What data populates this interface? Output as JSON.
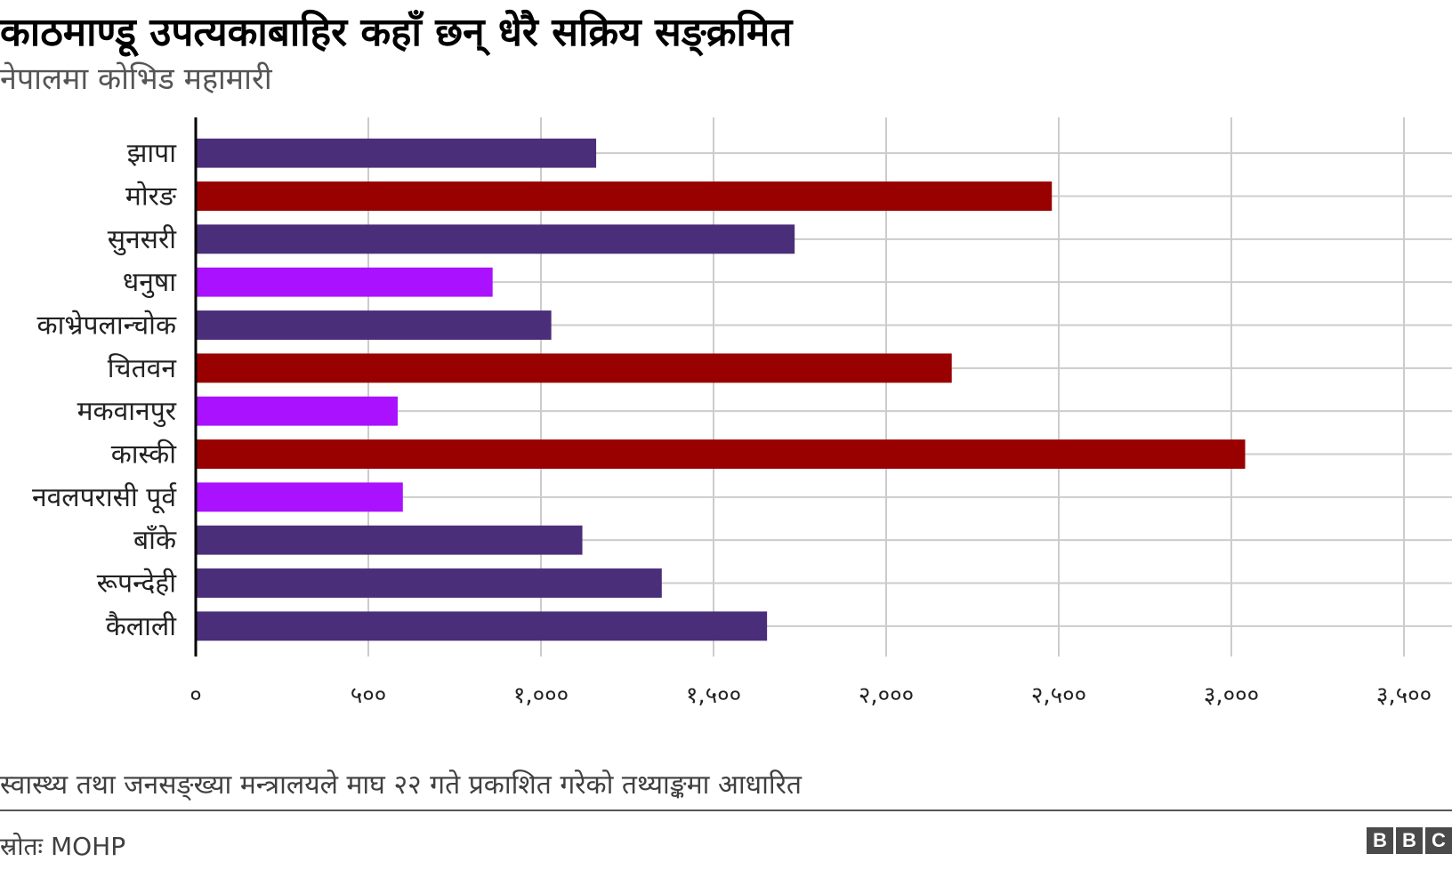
{
  "header": {
    "title": "काठमाण्डू उपत्यकाबाहिर कहाँ छन् धेरै सक्रिय सङ्क्रमित",
    "subtitle": "नेपालमा कोभिड महामारी"
  },
  "footer": {
    "note": "स्वास्थ्य तथा जनसङ्ख्या मन्त्रालयले माघ २२ गते प्रकाशित गरेको तथ्याङ्कमा आधारित",
    "source": "स्रोतः MOHP",
    "logo": [
      "B",
      "B",
      "C"
    ]
  },
  "colors": {
    "dark_purple": "#4b2e7a",
    "dark_red": "#990000",
    "bright_purple": "#aa11ff",
    "grid": "#cccccc",
    "axis": "#000000"
  },
  "chart_data": {
    "type": "bar",
    "orientation": "horizontal",
    "title": "काठमाण्डू उपत्यकाबाहिर कहाँ छन् धेरै सक्रिय सङ्क्रमित",
    "subtitle": "नेपालमा कोभिड महामारी",
    "categories": [
      "झापा",
      "मोरङ",
      "सुनसरी",
      "धनुषा",
      "काभ्रेपलान्चोक",
      "चितवन",
      "मकवानपुर",
      "कास्की",
      "नवलपरासी पूर्व",
      "बाँके",
      "रूपन्देही",
      "कैलाली"
    ],
    "values": [
      1160,
      2480,
      1735,
      860,
      1030,
      2190,
      585,
      3040,
      600,
      1120,
      1350,
      1655
    ],
    "bar_colors": [
      "#4b2e7a",
      "#990000",
      "#4b2e7a",
      "#aa11ff",
      "#4b2e7a",
      "#990000",
      "#aa11ff",
      "#990000",
      "#aa11ff",
      "#4b2e7a",
      "#4b2e7a",
      "#4b2e7a"
    ],
    "xlim": [
      0,
      3500
    ],
    "xticks": [
      0,
      500,
      1000,
      1500,
      2000,
      2500,
      3000,
      3500
    ],
    "xtick_labels": [
      "०",
      "५००",
      "१,०००",
      "१,५००",
      "२,०००",
      "२,५००",
      "३,०००",
      "३,५००"
    ],
    "xlabel": "",
    "ylabel": "",
    "grid": "vertical"
  }
}
